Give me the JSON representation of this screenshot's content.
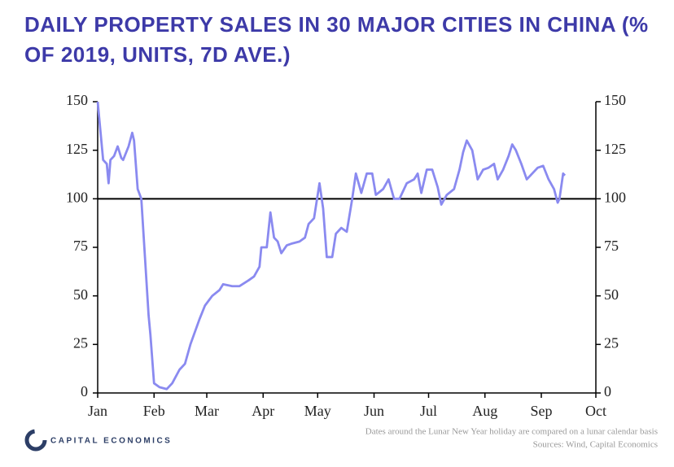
{
  "chart_data": {
    "type": "line",
    "title": "DAILY PROPERTY SALES IN 30 MAJOR CITIES IN CHINA (% OF 2019, UNITS, 7D AVE.)",
    "note": "Dates around the Lunar New Year holiday are compared on a lunar calendar basis",
    "source": "Sources: Wind, Capital Economics",
    "brand": "CAPITAL ECONOMICS",
    "xlim": [
      0,
      274
    ],
    "xticks": [
      {
        "value": 0,
        "label": "Jan"
      },
      {
        "value": 31,
        "label": "Feb"
      },
      {
        "value": 60,
        "label": "Mar"
      },
      {
        "value": 91,
        "label": "Apr"
      },
      {
        "value": 121,
        "label": "May"
      },
      {
        "value": 152,
        "label": "Jun"
      },
      {
        "value": 182,
        "label": "Jul"
      },
      {
        "value": 213,
        "label": "Aug"
      },
      {
        "value": 244,
        "label": "Sep"
      },
      {
        "value": 274,
        "label": "Oct"
      }
    ],
    "ylim": [
      0,
      150
    ],
    "yticks": [
      0,
      25,
      50,
      75,
      100,
      125,
      150
    ],
    "reference_line": 100,
    "series": [
      {
        "color": "#8a8af0",
        "x": [
          0,
          1,
          3,
          5,
          6,
          7,
          9,
          11,
          13,
          14,
          17,
          19,
          20,
          22,
          24,
          26,
          28,
          29,
          31,
          34,
          38,
          41,
          45,
          48,
          51,
          56,
          59,
          63,
          67,
          69,
          74,
          78,
          83,
          86,
          89,
          90,
          93,
          95,
          97,
          99,
          101,
          104,
          107,
          111,
          114,
          116,
          119,
          122,
          124,
          126,
          129,
          131,
          134,
          137,
          140,
          142,
          145,
          148,
          151,
          153,
          157,
          160,
          163,
          166,
          170,
          174,
          176,
          178,
          181,
          184,
          187,
          189,
          192,
          196,
          199,
          201,
          203,
          206,
          209,
          212,
          215,
          218,
          220,
          223,
          226,
          228,
          230,
          233,
          236,
          239,
          242,
          245,
          248,
          251,
          253,
          254,
          256,
          257
        ],
        "values": [
          150,
          140,
          120,
          118,
          108,
          120,
          122,
          127,
          121,
          120,
          127,
          134,
          130,
          105,
          100,
          70,
          40,
          30,
          5,
          3,
          2,
          5,
          12,
          15,
          25,
          38,
          45,
          50,
          53,
          56,
          55,
          55,
          58,
          60,
          65,
          75,
          75,
          93,
          80,
          78,
          72,
          76,
          77,
          78,
          80,
          87,
          90,
          108,
          95,
          70,
          70,
          82,
          85,
          83,
          100,
          113,
          103,
          113,
          113,
          102,
          105,
          110,
          100,
          100,
          108,
          110,
          113,
          103,
          115,
          115,
          106,
          97,
          102,
          105,
          115,
          124,
          130,
          125,
          110,
          115,
          116,
          118,
          110,
          115,
          122,
          128,
          125,
          118,
          110,
          113,
          116,
          117,
          110,
          105,
          98,
          100,
          113,
          112
        ]
      }
    ]
  }
}
